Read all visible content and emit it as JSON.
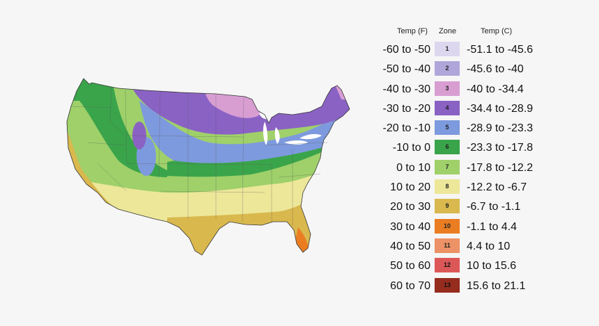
{
  "legend": {
    "headers": {
      "temp_f": "Temp (F)",
      "zone": "Zone",
      "temp_c": "Temp (C)"
    },
    "rows": [
      {
        "temp_f": "-60 to -50",
        "zone": "1",
        "temp_c": "-51.1 to -45.6",
        "color": "#dcd6ee"
      },
      {
        "temp_f": "-50 to -40",
        "zone": "2",
        "temp_c": "-45.6 to -40",
        "color": "#b0a6da"
      },
      {
        "temp_f": "-40 to -30",
        "zone": "3",
        "temp_c": "-40 to -34.4",
        "color": "#d89ed2"
      },
      {
        "temp_f": "-30 to -20",
        "zone": "4",
        "temp_c": "-34.4 to -28.9",
        "color": "#8a62c4"
      },
      {
        "temp_f": "-20 to -10",
        "zone": "5",
        "temp_c": "-28.9 to -23.3",
        "color": "#7e9ade"
      },
      {
        "temp_f": "-10 to 0",
        "zone": "6",
        "temp_c": "-23.3 to -17.8",
        "color": "#3aa44a"
      },
      {
        "temp_f": "0 to 10",
        "zone": "7",
        "temp_c": "-17.8 to -12.2",
        "color": "#9fd06a"
      },
      {
        "temp_f": "10 to 20",
        "zone": "8",
        "temp_c": "-12.2 to -6.7",
        "color": "#ede79a"
      },
      {
        "temp_f": "20 to 30",
        "zone": "9",
        "temp_c": "-6.7 to -1.1",
        "color": "#d9b84e"
      },
      {
        "temp_f": "30 to 40",
        "zone": "10",
        "temp_c": "-1.1 to 4.4",
        "color": "#ea7d22"
      },
      {
        "temp_f": "40 to 50",
        "zone": "11",
        "temp_c": "4.4 to 10",
        "color": "#ec9266"
      },
      {
        "temp_f": "50 to 60",
        "zone": "12",
        "temp_c": "10 to 15.6",
        "color": "#dc5858"
      },
      {
        "temp_f": "60 to 70",
        "zone": "13",
        "temp_c": "15.6 to 21.1",
        "color": "#962c1e"
      }
    ]
  },
  "map": {
    "zone_colors": {
      "z3": "#d89ed2",
      "z4": "#8a62c4",
      "z5": "#7e9ade",
      "z6": "#3aa44a",
      "z7": "#9fd06a",
      "z8": "#ede79a",
      "z9": "#d9b84e",
      "z10": "#ea7d22",
      "lakes": "#ffffff"
    }
  }
}
